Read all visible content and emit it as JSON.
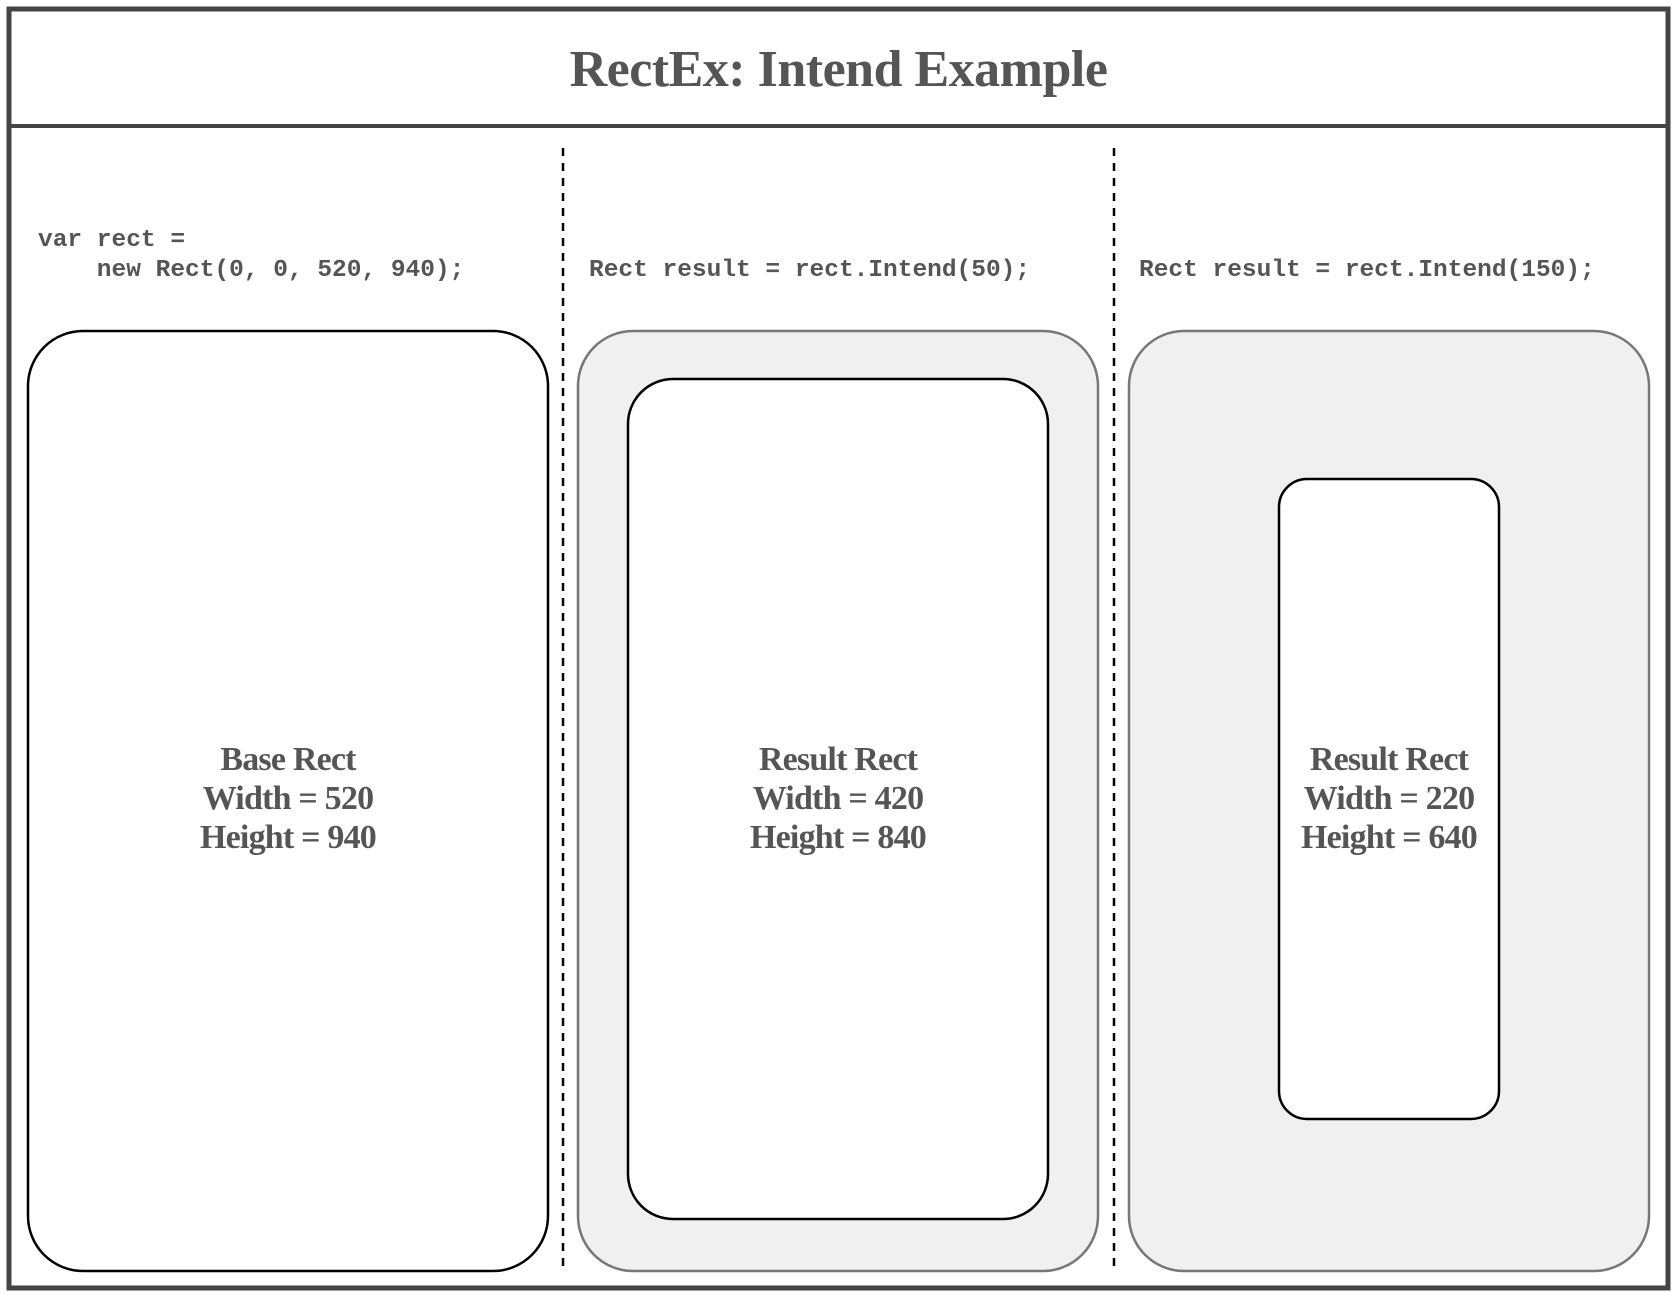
{
  "title": "RectEx: Intend Example",
  "colors": {
    "stroke": "#000000",
    "frame": "#444444",
    "outer_stroke": "#777777",
    "outer_fill": "#f0f0f0",
    "text": "#555555"
  },
  "panels": [
    {
      "code_lines": [
        "var rect =",
        "    new Rect(0, 0, 520, 940);"
      ],
      "label": {
        "name": "Base Rect",
        "width": "Width = 520",
        "height": "Height = 940"
      },
      "intend": 0,
      "width": 520,
      "height": 940
    },
    {
      "code_lines": [
        "Rect result = rect.Intend(50);"
      ],
      "label": {
        "name": "Result Rect",
        "width": "Width = 420",
        "height": "Height = 840"
      },
      "intend": 50,
      "width": 420,
      "height": 840
    },
    {
      "code_lines": [
        "Rect result = rect.Intend(150);"
      ],
      "label": {
        "name": "Result Rect",
        "width": "Width = 220",
        "height": "Height = 640"
      },
      "intend": 150,
      "width": 220,
      "height": 640
    }
  ]
}
